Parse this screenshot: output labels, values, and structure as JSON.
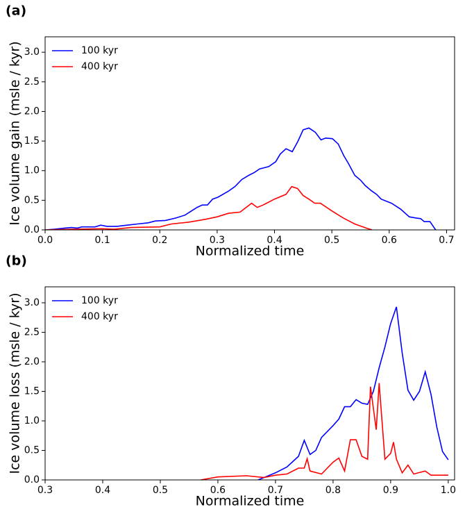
{
  "chart_data": [
    {
      "type": "line",
      "label": "(a)",
      "xlabel": "Normalized time",
      "ylabel": "Ice volume gain (msle / kyr)",
      "xlim": [
        0,
        0.714
      ],
      "ylim": [
        0,
        3.26
      ],
      "xticks": [
        {
          "value": 0,
          "label": "0.0"
        },
        0.1,
        0.2,
        0.3,
        0.4,
        0.5,
        0.6,
        0.7
      ],
      "yticks": [
        {
          "value": 0,
          "label": "0.0"
        },
        0.5,
        {
          "value": 1,
          "label": "1.0"
        },
        1.5,
        {
          "value": 2,
          "label": "2.0"
        },
        2.5,
        {
          "value": 3,
          "label": "3.0"
        }
      ],
      "legend": "upper left",
      "series": [
        {
          "name": "100 kyr",
          "color": "#0000ff",
          "x": [
            0,
            0.016,
            0.034,
            0.046,
            0.056,
            0.064,
            0.076,
            0.087,
            0.097,
            0.108,
            0.125,
            0.143,
            0.161,
            0.18,
            0.192,
            0.21,
            0.228,
            0.244,
            0.252,
            0.265,
            0.274,
            0.283,
            0.292,
            0.301,
            0.319,
            0.331,
            0.343,
            0.355,
            0.365,
            0.374,
            0.39,
            0.402,
            0.41,
            0.42,
            0.431,
            0.441,
            0.45,
            0.46,
            0.471,
            0.481,
            0.489,
            0.501,
            0.511,
            0.521,
            0.529,
            0.54,
            0.55,
            0.558,
            0.569,
            0.578,
            0.586,
            0.604,
            0.62,
            0.635,
            0.647,
            0.655,
            0.661,
            0.671,
            0.681
          ],
          "values": [
            0,
            0.01,
            0.03,
            0.04,
            0.03,
            0.05,
            0.05,
            0.05,
            0.08,
            0.06,
            0.06,
            0.08,
            0.1,
            0.12,
            0.15,
            0.16,
            0.2,
            0.25,
            0.3,
            0.38,
            0.42,
            0.42,
            0.52,
            0.55,
            0.65,
            0.73,
            0.85,
            0.92,
            0.97,
            1.03,
            1.07,
            1.15,
            1.28,
            1.37,
            1.32,
            1.5,
            1.69,
            1.72,
            1.65,
            1.52,
            1.55,
            1.54,
            1.45,
            1.25,
            1.12,
            0.92,
            0.84,
            0.75,
            0.66,
            0.6,
            0.52,
            0.45,
            0.35,
            0.22,
            0.2,
            0.19,
            0.14,
            0.14,
            0
          ]
        },
        {
          "name": "400 kyr",
          "color": "#ff0000",
          "x": [
            0,
            0.05,
            0.1,
            0.12,
            0.15,
            0.2,
            0.22,
            0.25,
            0.28,
            0.3,
            0.32,
            0.34,
            0.36,
            0.37,
            0.38,
            0.4,
            0.42,
            0.43,
            0.44,
            0.45,
            0.46,
            0.47,
            0.48,
            0.5,
            0.52,
            0.54,
            0.56,
            0.57
          ],
          "values": [
            0,
            0.01,
            0.02,
            0.01,
            0.04,
            0.05,
            0.1,
            0.13,
            0.18,
            0.22,
            0.28,
            0.3,
            0.45,
            0.38,
            0.42,
            0.52,
            0.6,
            0.73,
            0.7,
            0.58,
            0.52,
            0.45,
            0.45,
            0.32,
            0.2,
            0.1,
            0.03,
            0
          ]
        }
      ]
    },
    {
      "type": "line",
      "label": "(b)",
      "xlabel": "Normalized time",
      "ylabel": "Ice volume loss (msle / kyr)",
      "xlim": [
        0.3,
        1.011
      ],
      "ylim": [
        0,
        3.27
      ],
      "xticks": [
        0.3,
        0.4,
        0.5,
        0.6,
        0.7,
        0.8,
        0.9,
        {
          "value": 1,
          "label": "1.0"
        }
      ],
      "yticks": [
        {
          "value": 0,
          "label": "0.0"
        },
        0.5,
        {
          "value": 1,
          "label": "1.0"
        },
        1.5,
        {
          "value": 2,
          "label": "2.0"
        },
        2.5,
        {
          "value": 3,
          "label": "3.0"
        }
      ],
      "legend": "upper left",
      "series": [
        {
          "name": "100 kyr",
          "color": "#0000ff",
          "x": [
            0.67,
            0.7,
            0.72,
            0.74,
            0.75,
            0.76,
            0.77,
            0.78,
            0.8,
            0.81,
            0.82,
            0.83,
            0.84,
            0.85,
            0.86,
            0.87,
            0.88,
            0.89,
            0.9,
            0.91,
            0.92,
            0.93,
            0.94,
            0.95,
            0.96,
            0.97,
            0.98,
            0.99,
            1
          ],
          "values": [
            0,
            0.12,
            0.22,
            0.4,
            0.67,
            0.43,
            0.5,
            0.72,
            0.92,
            1.03,
            1.24,
            1.24,
            1.36,
            1.3,
            1.28,
            1.5,
            1.9,
            2.25,
            2.65,
            2.93,
            2.15,
            1.52,
            1.35,
            1.5,
            1.83,
            1.45,
            0.9,
            0.48,
            0.34
          ]
        },
        {
          "name": "400 kyr",
          "color": "#ff0000",
          "x": [
            0.57,
            0.6,
            0.65,
            0.68,
            0.7,
            0.72,
            0.74,
            0.75,
            0.755,
            0.76,
            0.78,
            0.8,
            0.81,
            0.82,
            0.83,
            0.84,
            0.85,
            0.86,
            0.865,
            0.875,
            0.88,
            0.89,
            0.9,
            0.905,
            0.91,
            0.92,
            0.93,
            0.94,
            0.96,
            0.97,
            1
          ],
          "values": [
            0,
            0.05,
            0.07,
            0.04,
            0.08,
            0.1,
            0.2,
            0.2,
            0.36,
            0.15,
            0.1,
            0.3,
            0.37,
            0.15,
            0.68,
            0.68,
            0.4,
            0.35,
            1.58,
            0.85,
            1.64,
            0.35,
            0.45,
            0.64,
            0.35,
            0.12,
            0.25,
            0.1,
            0.15,
            0.08,
            0.08
          ]
        }
      ]
    }
  ]
}
